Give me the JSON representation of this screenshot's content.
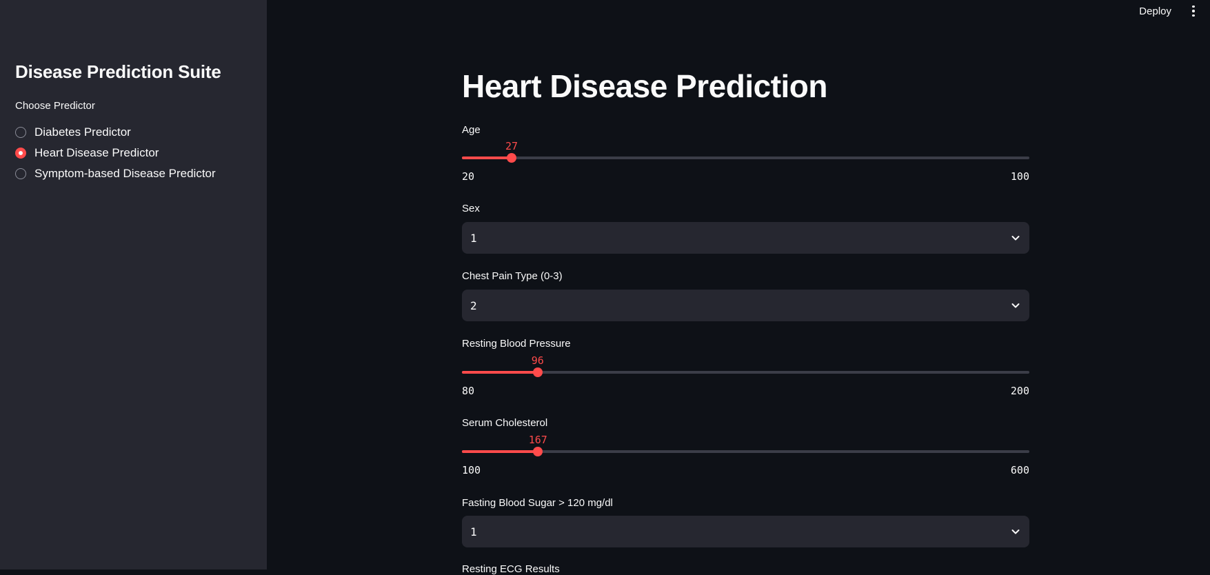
{
  "header": {
    "deploy_label": "Deploy",
    "menu_icon": "more-vertical-icon"
  },
  "sidebar": {
    "title": "Disease Prediction Suite",
    "caption": "Choose Predictor",
    "options": [
      {
        "label": "Diabetes Predictor",
        "selected": false
      },
      {
        "label": "Heart Disease Predictor",
        "selected": true
      },
      {
        "label": "Symptom-based Disease Predictor",
        "selected": false
      }
    ]
  },
  "main": {
    "title": "Heart Disease Prediction",
    "age": {
      "label": "Age",
      "value": 27,
      "min": 20,
      "max": 100
    },
    "sex": {
      "label": "Sex",
      "value": "1"
    },
    "chest_pain": {
      "label": "Chest Pain Type (0-3)",
      "value": "2"
    },
    "resting_bp": {
      "label": "Resting Blood Pressure",
      "value": 96,
      "min": 80,
      "max": 200
    },
    "cholesterol": {
      "label": "Serum Cholesterol",
      "value": 167,
      "min": 100,
      "max": 600
    },
    "fasting_bs": {
      "label": "Fasting Blood Sugar > 120 mg/dl",
      "value": "1"
    },
    "resting_ecg": {
      "label": "Resting ECG Results"
    }
  },
  "colors": {
    "accent": "#ff4b4b",
    "background": "#0e1117",
    "sidebar": "#262730",
    "input": "#262730"
  }
}
